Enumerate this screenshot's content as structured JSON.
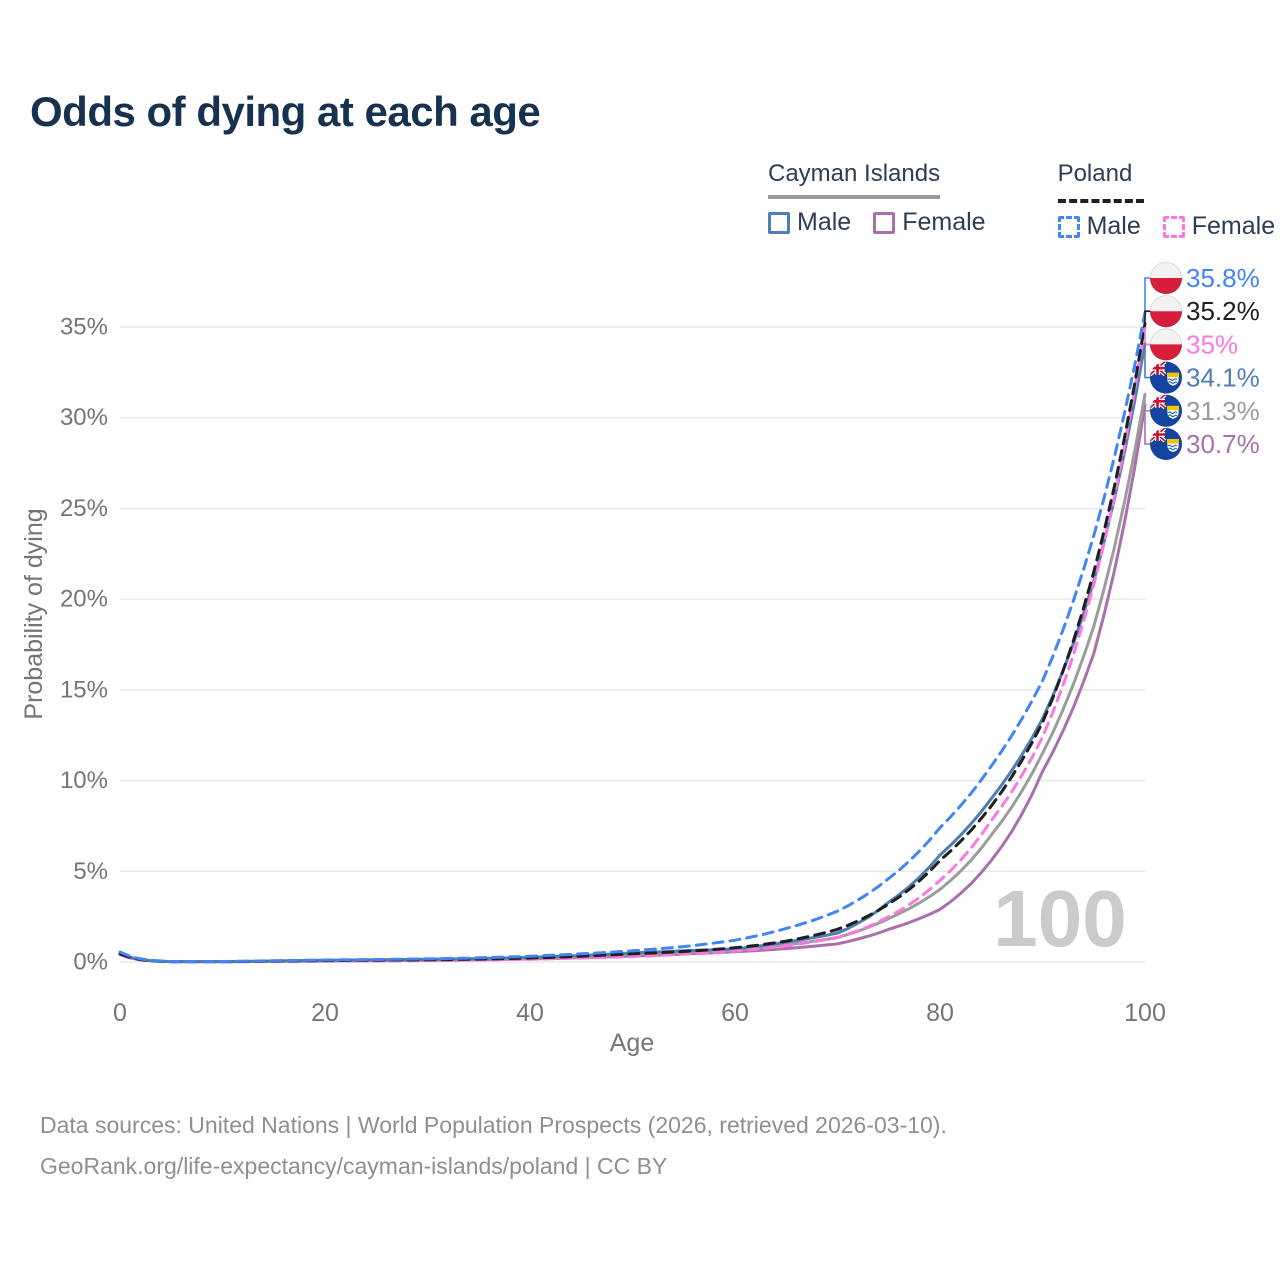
{
  "header": {
    "title": "Odds of dying at each age"
  },
  "legend": {
    "groups": [
      {
        "country": "Cayman Islands",
        "line_style": "solid",
        "underline_color": "#9a9a9a",
        "items": [
          {
            "label": "Male",
            "color": "#4e7eb5"
          },
          {
            "label": "Female",
            "color": "#aa70ad"
          }
        ]
      },
      {
        "country": "Poland",
        "line_style": "dashed",
        "underline_color": "#1f1f1f",
        "items": [
          {
            "label": "Male",
            "color": "#4285f4"
          },
          {
            "label": "Female",
            "color": "#fb78df"
          }
        ]
      }
    ]
  },
  "chart_data": {
    "type": "line",
    "title": "Odds of dying at each age",
    "xlabel": "Age",
    "ylabel": "Probability of dying",
    "xlim": [
      0,
      100
    ],
    "ylim_pct": [
      0,
      37.5
    ],
    "grid": "horizontal",
    "age_watermark": "100",
    "x_ticks": [
      {
        "v": 0,
        "label": "0"
      },
      {
        "v": 20,
        "label": "20"
      },
      {
        "v": 40,
        "label": "40"
      },
      {
        "v": 60,
        "label": "60"
      },
      {
        "v": 80,
        "label": "80"
      },
      {
        "v": 100,
        "label": "100"
      }
    ],
    "y_ticks": [
      {
        "v": 0,
        "label": "0%"
      },
      {
        "v": 5,
        "label": "5%"
      },
      {
        "v": 10,
        "label": "10%"
      },
      {
        "v": 15,
        "label": "15%"
      },
      {
        "v": 20,
        "label": "20%"
      },
      {
        "v": 25,
        "label": "25%"
      },
      {
        "v": 30,
        "label": "30%"
      },
      {
        "v": 35,
        "label": "35%"
      }
    ],
    "ages": [
      0,
      5,
      10,
      15,
      20,
      25,
      30,
      35,
      40,
      45,
      50,
      55,
      60,
      65,
      70,
      75,
      80,
      85,
      90,
      95,
      100
    ],
    "series": [
      {
        "name": "Poland Male",
        "country": "Poland",
        "sex": "Male",
        "color": "#4285f4",
        "label_color": "#4285f4",
        "dashed": true,
        "flag": "poland",
        "end_label": "35.8%",
        "values_pct": [
          0.55,
          0.03,
          0.03,
          0.07,
          0.11,
          0.14,
          0.17,
          0.23,
          0.32,
          0.45,
          0.62,
          0.85,
          1.2,
          1.85,
          2.8,
          4.6,
          7.4,
          10.8,
          15.5,
          23.5,
          35.8
        ]
      },
      {
        "name": "Poland Both sexes",
        "country": "Poland",
        "sex": "Both",
        "color": "#1f1f1f",
        "label_color": "#1f1f1f",
        "dashed": true,
        "flag": "poland",
        "end_label": "35.2%",
        "values_pct": [
          0.45,
          0.02,
          0.02,
          0.05,
          0.08,
          0.1,
          0.12,
          0.16,
          0.22,
          0.32,
          0.45,
          0.58,
          0.78,
          1.15,
          1.8,
          3.2,
          5.6,
          8.6,
          13.2,
          21.5,
          35.2
        ]
      },
      {
        "name": "Poland Female",
        "country": "Poland",
        "sex": "Female",
        "color": "#fb78df",
        "label_color": "#fb78df",
        "dashed": true,
        "flag": "poland",
        "end_label": "35%",
        "values_pct": [
          0.4,
          0.02,
          0.02,
          0.03,
          0.05,
          0.06,
          0.08,
          0.11,
          0.15,
          0.22,
          0.3,
          0.44,
          0.6,
          0.9,
          1.35,
          2.5,
          4.5,
          7.8,
          12.4,
          20.8,
          35.0
        ]
      },
      {
        "name": "Cayman Islands Male",
        "country": "Cayman Islands",
        "sex": "Male",
        "color": "#4e7eb5",
        "label_color": "#4e7eb5",
        "dashed": false,
        "flag": "cayman-islands",
        "end_label": "34.1%",
        "values_pct": [
          0.5,
          0.02,
          0.02,
          0.06,
          0.1,
          0.12,
          0.15,
          0.19,
          0.26,
          0.36,
          0.5,
          0.62,
          0.72,
          1.1,
          1.6,
          3.3,
          5.9,
          9.0,
          13.4,
          21.0,
          34.1
        ]
      },
      {
        "name": "Cayman Islands Both sexes",
        "country": "Cayman Islands",
        "sex": "Both",
        "color": "#9c9c9c",
        "label_color": "#9c9c9c",
        "dashed": false,
        "flag": "cayman-islands",
        "end_label": "31.3%",
        "values_pct": [
          0.45,
          0.02,
          0.02,
          0.05,
          0.08,
          0.1,
          0.12,
          0.15,
          0.21,
          0.3,
          0.42,
          0.53,
          0.66,
          0.95,
          1.35,
          2.4,
          4.0,
          7.0,
          11.5,
          18.5,
          31.3
        ]
      },
      {
        "name": "Cayman Islands Female",
        "country": "Cayman Islands",
        "sex": "Female",
        "color": "#aa70ad",
        "label_color": "#aa70ad",
        "dashed": false,
        "flag": "cayman-islands",
        "end_label": "30.7%",
        "values_pct": [
          0.4,
          0.02,
          0.02,
          0.03,
          0.05,
          0.07,
          0.09,
          0.12,
          0.17,
          0.24,
          0.33,
          0.44,
          0.56,
          0.74,
          1.0,
          1.8,
          2.9,
          5.6,
          10.5,
          17.0,
          30.7
        ]
      }
    ]
  },
  "footer": {
    "line1": "Data sources: United Nations | World Population Prospects (2026, retrieved 2026-03-10).",
    "line2": "GeoRank.org/life-expectancy/cayman-islands/poland | CC BY"
  }
}
